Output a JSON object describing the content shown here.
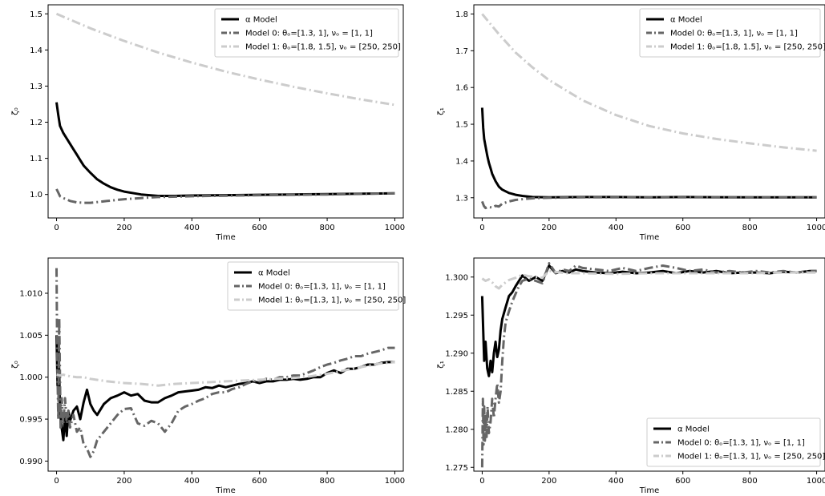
{
  "figure": {
    "layout": "2x2 grid of line charts"
  },
  "chart_data": [
    {
      "type": "line",
      "title": "",
      "xlabel": "Time",
      "ylabel": "ζ₀",
      "xlim": [
        -25,
        1025
      ],
      "ylim": [
        0.935,
        1.525
      ],
      "xticks": [
        0,
        200,
        400,
        600,
        800,
        1000
      ],
      "xtick_labels": [
        "0",
        "200",
        "400",
        "600",
        "800",
        "1000"
      ],
      "yticks": [
        1.0,
        1.1,
        1.2,
        1.3,
        1.4,
        1.5
      ],
      "ytick_labels": [
        "1.0",
        "1.1",
        "1.2",
        "1.3",
        "1.4",
        "1.5"
      ],
      "grid": false,
      "legend_position": "top-right",
      "series": [
        {
          "name": "α Model",
          "color": "#000000",
          "style": "solid",
          "x": [
            0,
            5,
            10,
            20,
            30,
            40,
            50,
            60,
            70,
            80,
            100,
            120,
            140,
            160,
            180,
            200,
            250,
            300,
            350,
            400,
            500,
            600,
            700,
            800,
            900,
            1000
          ],
          "y": [
            1.255,
            1.22,
            1.19,
            1.17,
            1.155,
            1.14,
            1.125,
            1.11,
            1.095,
            1.08,
            1.06,
            1.042,
            1.03,
            1.02,
            1.013,
            1.008,
            1.0,
            0.996,
            0.996,
            0.997,
            0.998,
            0.999,
            1.0,
            1.001,
            1.002,
            1.003
          ]
        },
        {
          "name": "Model 0: θₒ=[1.3, 1], νₒ = [1, 1]",
          "color": "#666666",
          "style": "dashdot",
          "x": [
            0,
            5,
            10,
            20,
            40,
            60,
            80,
            100,
            120,
            150,
            200,
            250,
            300,
            400,
            600,
            800,
            1000
          ],
          "y": [
            1.015,
            1.005,
            0.995,
            0.99,
            0.982,
            0.978,
            0.977,
            0.977,
            0.979,
            0.982,
            0.987,
            0.99,
            0.993,
            0.995,
            0.998,
            1.0,
            1.003
          ]
        },
        {
          "name": "Model 1: θₒ=[1.8, 1.5], νₒ = [250, 250]",
          "color": "#cccccc",
          "style": "dashdot",
          "x": [
            0,
            100,
            200,
            300,
            400,
            500,
            600,
            700,
            800,
            900,
            1000
          ],
          "y": [
            1.5,
            1.46,
            1.425,
            1.393,
            1.365,
            1.34,
            1.318,
            1.298,
            1.28,
            1.263,
            1.248
          ]
        }
      ]
    },
    {
      "type": "line",
      "title": "",
      "xlabel": "Time",
      "ylabel": "ζ₁",
      "xlim": [
        -25,
        1025
      ],
      "ylim": [
        1.245,
        1.825
      ],
      "xticks": [
        0,
        200,
        400,
        600,
        800,
        1000
      ],
      "xtick_labels": [
        "0",
        "200",
        "400",
        "600",
        "800",
        "1000"
      ],
      "yticks": [
        1.3,
        1.4,
        1.5,
        1.6,
        1.7,
        1.8
      ],
      "ytick_labels": [
        "1.3",
        "1.4",
        "1.5",
        "1.6",
        "1.7",
        "1.8"
      ],
      "grid": false,
      "legend_position": "top-right",
      "series": [
        {
          "name": "α Model",
          "color": "#000000",
          "style": "solid",
          "x": [
            0,
            3,
            6,
            10,
            15,
            20,
            25,
            30,
            40,
            50,
            60,
            80,
            100,
            120,
            150,
            200,
            300,
            400,
            500,
            600,
            800,
            1000
          ],
          "y": [
            1.545,
            1.49,
            1.46,
            1.44,
            1.415,
            1.395,
            1.38,
            1.365,
            1.345,
            1.33,
            1.322,
            1.313,
            1.308,
            1.305,
            1.302,
            1.301,
            1.302,
            1.302,
            1.301,
            1.302,
            1.301,
            1.301
          ]
        },
        {
          "name": "Model 0: θₒ=[1.3, 1], νₒ = [1, 1]",
          "color": "#666666",
          "style": "dashdot",
          "x": [
            0,
            5,
            10,
            20,
            30,
            40,
            50,
            60,
            80,
            100,
            130,
            160,
            200,
            300,
            400,
            600,
            800,
            1000
          ],
          "y": [
            1.29,
            1.278,
            1.272,
            1.275,
            1.273,
            1.278,
            1.276,
            1.284,
            1.29,
            1.294,
            1.297,
            1.299,
            1.3,
            1.301,
            1.301,
            1.301,
            1.301,
            1.301
          ]
        },
        {
          "name": "Model 1: θₒ=[1.8, 1.5], νₒ = [250, 250]",
          "color": "#cccccc",
          "style": "dashdot",
          "x": [
            0,
            50,
            100,
            150,
            200,
            300,
            400,
            500,
            600,
            700,
            800,
            900,
            1000
          ],
          "y": [
            1.8,
            1.745,
            1.695,
            1.655,
            1.62,
            1.565,
            1.525,
            1.495,
            1.475,
            1.46,
            1.448,
            1.437,
            1.428
          ]
        }
      ]
    },
    {
      "type": "line",
      "title": "",
      "xlabel": "Time",
      "ylabel": "ζ₀",
      "xlim": [
        -25,
        1025
      ],
      "ylim": [
        0.9888,
        1.0142
      ],
      "xticks": [
        0,
        200,
        400,
        600,
        800,
        1000
      ],
      "xtick_labels": [
        "0",
        "200",
        "400",
        "600",
        "800",
        "1000"
      ],
      "yticks": [
        0.99,
        0.995,
        1.0,
        1.005,
        1.01
      ],
      "ytick_labels": [
        "0.990",
        "0.995",
        "1.000",
        "1.005",
        "1.010"
      ],
      "grid": false,
      "legend_position": "top-right",
      "series": [
        {
          "name": "α Model",
          "color": "#000000",
          "style": "solid",
          "x": [
            0,
            3,
            6,
            10,
            15,
            20,
            25,
            30,
            35,
            40,
            50,
            60,
            70,
            80,
            90,
            100,
            110,
            120,
            140,
            160,
            180,
            200,
            220,
            240,
            260,
            280,
            300,
            320,
            340,
            360,
            380,
            400,
            420,
            440,
            460,
            480,
            500,
            520,
            540,
            560,
            580,
            600,
            620,
            640,
            660,
            680,
            700,
            720,
            740,
            760,
            780,
            800,
            820,
            840,
            860,
            880,
            900,
            920,
            940,
            960,
            980,
            1000
          ],
          "y": [
            1.005,
            0.999,
            1.004,
            0.996,
            0.994,
            0.9925,
            0.9955,
            0.993,
            0.996,
            0.9948,
            0.996,
            0.9965,
            0.995,
            0.997,
            0.9985,
            0.9968,
            0.996,
            0.9955,
            0.9968,
            0.9975,
            0.9978,
            0.9982,
            0.9978,
            0.998,
            0.9972,
            0.997,
            0.997,
            0.9975,
            0.9978,
            0.9982,
            0.9983,
            0.9984,
            0.9985,
            0.9988,
            0.9987,
            0.999,
            0.9988,
            0.999,
            0.9992,
            0.9993,
            0.9995,
            0.9993,
            0.9995,
            0.9995,
            0.9997,
            0.9997,
            0.9998,
            0.9997,
            0.9998,
            1.0,
            1.0,
            1.0005,
            1.0008,
            1.0005,
            1.001,
            1.001,
            1.0012,
            1.0015,
            1.0015,
            1.0017,
            1.0018,
            1.0018
          ]
        },
        {
          "name": "Model 0: θₒ=[1.3, 1], νₒ = [1, 1]",
          "color": "#666666",
          "style": "dashdot",
          "x": [
            0,
            2,
            5,
            8,
            12,
            15,
            20,
            25,
            30,
            35,
            40,
            50,
            60,
            70,
            80,
            90,
            100,
            110,
            120,
            140,
            160,
            180,
            200,
            220,
            240,
            260,
            280,
            300,
            320,
            340,
            360,
            380,
            400,
            420,
            440,
            460,
            480,
            500,
            520,
            540,
            560,
            580,
            600,
            620,
            640,
            660,
            680,
            700,
            720,
            740,
            760,
            780,
            800,
            820,
            840,
            860,
            880,
            900,
            920,
            940,
            960,
            980,
            1000
          ],
          "y": [
            1.013,
            1.002,
            0.995,
            1.007,
            0.994,
            0.9975,
            0.9945,
            0.9975,
            0.9945,
            0.996,
            0.994,
            0.9955,
            0.9935,
            0.994,
            0.992,
            0.9915,
            0.9905,
            0.9912,
            0.9925,
            0.9935,
            0.9945,
            0.9955,
            0.9962,
            0.9963,
            0.9945,
            0.9942,
            0.9948,
            0.9945,
            0.9935,
            0.9945,
            0.996,
            0.9965,
            0.9968,
            0.9972,
            0.9975,
            0.998,
            0.9982,
            0.9982,
            0.9986,
            0.9988,
            0.9992,
            0.9995,
            0.9995,
            0.9998,
            0.9997,
            1.0,
            1.0,
            1.0002,
            1.0002,
            1.0005,
            1.0008,
            1.0012,
            1.0015,
            1.0017,
            1.002,
            1.0022,
            1.0025,
            1.0025,
            1.0028,
            1.003,
            1.0032,
            1.0035,
            1.0035
          ]
        },
        {
          "name": "Model 1: θₒ=[1.3, 1], νₒ = [250, 250]",
          "color": "#cccccc",
          "style": "dashdot",
          "x": [
            0,
            10,
            20,
            40,
            60,
            80,
            100,
            150,
            200,
            250,
            300,
            350,
            400,
            450,
            500,
            550,
            600,
            650,
            700,
            750,
            800,
            850,
            900,
            950,
            1000
          ],
          "y": [
            1.0003,
            1.0002,
            1.0003,
            1.0001,
            1.0,
            1.0,
            0.9998,
            0.9995,
            0.9993,
            0.9992,
            0.999,
            0.9992,
            0.9993,
            0.9994,
            0.9995,
            0.9996,
            0.9997,
            0.9998,
            0.9999,
            1.0001,
            1.0004,
            1.0008,
            1.0012,
            1.0016,
            1.0018
          ]
        }
      ]
    },
    {
      "type": "line",
      "title": "",
      "xlabel": "Time",
      "ylabel": "ζ₁",
      "xlim": [
        -25,
        1025
      ],
      "ylim": [
        1.2745,
        1.3025
      ],
      "xticks": [
        0,
        200,
        400,
        600,
        800,
        1000
      ],
      "xtick_labels": [
        "0",
        "200",
        "400",
        "600",
        "800",
        "1000"
      ],
      "yticks": [
        1.275,
        1.28,
        1.285,
        1.29,
        1.295,
        1.3
      ],
      "ytick_labels": [
        "1.275",
        "1.280",
        "1.285",
        "1.290",
        "1.295",
        "1.300"
      ],
      "grid": false,
      "legend_position": "bottom-right",
      "series": [
        {
          "name": "α Model",
          "color": "#000000",
          "style": "solid",
          "x": [
            0,
            3,
            6,
            10,
            15,
            20,
            25,
            30,
            35,
            40,
            45,
            50,
            55,
            60,
            70,
            80,
            90,
            100,
            110,
            120,
            140,
            160,
            180,
            200,
            220,
            240,
            260,
            280,
            300,
            340,
            380,
            420,
            460,
            500,
            540,
            580,
            620,
            660,
            700,
            740,
            780,
            820,
            860,
            900,
            940,
            980,
            1000
          ],
          "y": [
            1.2975,
            1.293,
            1.289,
            1.2915,
            1.288,
            1.287,
            1.289,
            1.2875,
            1.29,
            1.2915,
            1.2895,
            1.2905,
            1.293,
            1.2945,
            1.296,
            1.2975,
            1.298,
            1.2988,
            1.2995,
            1.3002,
            1.2995,
            1.3,
            1.2995,
            1.3015,
            1.3005,
            1.3008,
            1.3006,
            1.301,
            1.3008,
            1.3006,
            1.3005,
            1.3007,
            1.3005,
            1.3006,
            1.3008,
            1.3005,
            1.3008,
            1.3006,
            1.3008,
            1.3005,
            1.3006,
            1.3006,
            1.3005,
            1.3007,
            1.3006,
            1.3008,
            1.3008
          ]
        },
        {
          "name": "Model 0: θₒ=[1.3, 1], νₒ = [1, 1]",
          "color": "#666666",
          "style": "dashdot",
          "x": [
            0,
            2,
            4,
            6,
            8,
            10,
            13,
            16,
            20,
            25,
            30,
            35,
            40,
            45,
            50,
            55,
            60,
            65,
            70,
            80,
            90,
            100,
            110,
            120,
            140,
            160,
            180,
            200,
            220,
            240,
            260,
            280,
            300,
            340,
            380,
            420,
            460,
            500,
            540,
            580,
            620,
            660,
            700,
            740,
            780,
            820,
            860,
            900,
            940,
            980,
            1000
          ],
          "y": [
            1.275,
            1.284,
            1.278,
            1.283,
            1.2785,
            1.282,
            1.279,
            1.283,
            1.2795,
            1.281,
            1.284,
            1.2815,
            1.284,
            1.286,
            1.2835,
            1.285,
            1.289,
            1.292,
            1.294,
            1.2955,
            1.2968,
            1.2978,
            1.2988,
            1.2995,
            1.2998,
            1.2995,
            1.2992,
            1.3018,
            1.3005,
            1.301,
            1.3008,
            1.3015,
            1.3012,
            1.301,
            1.3008,
            1.3012,
            1.3008,
            1.3012,
            1.3015,
            1.3012,
            1.3008,
            1.301,
            1.3006,
            1.3008,
            1.3006,
            1.3008,
            1.3006,
            1.3008,
            1.3006,
            1.3008,
            1.3008
          ]
        },
        {
          "name": "Model 1: θₒ=[1.3, 1], νₒ = [250, 250]",
          "color": "#cccccc",
          "style": "dashdot",
          "x": [
            0,
            10,
            20,
            30,
            40,
            50,
            60,
            80,
            100,
            120,
            140,
            160,
            180,
            200,
            250,
            300,
            400,
            500,
            600,
            700,
            800,
            900,
            1000
          ],
          "y": [
            1.2998,
            1.2995,
            1.2997,
            1.2993,
            1.2988,
            1.2985,
            1.299,
            1.2996,
            1.2999,
            1.3003,
            1.3001,
            1.3,
            1.2999,
            1.3008,
            1.3005,
            1.3005,
            1.3004,
            1.3005,
            1.3005,
            1.3005,
            1.3005,
            1.3006,
            1.3006
          ]
        }
      ]
    }
  ]
}
